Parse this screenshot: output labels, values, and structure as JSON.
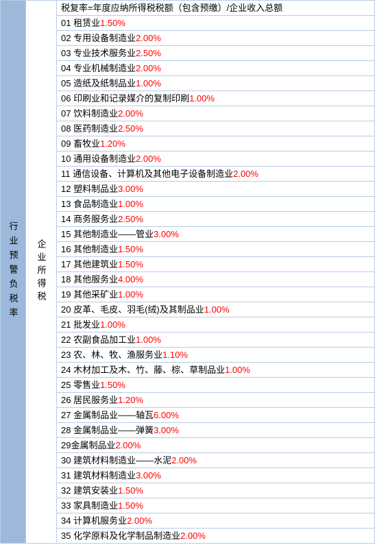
{
  "leftHeader": "行业预警负税率",
  "midHeader": "企业所得税",
  "formulaRow": "税复率=年度应纳所得税税额（包含预缴）/企业收入总额",
  "rows": [
    {
      "num": "01",
      "name": "租赁业",
      "rate": "1.50%",
      "sep": " "
    },
    {
      "num": "02",
      "name": "专用设备制造业",
      "rate": "2.00%",
      "sep": " "
    },
    {
      "num": "03",
      "name": "专业技术服务业",
      "rate": "2.50%",
      "sep": " "
    },
    {
      "num": "04",
      "name": "专业机械制造业",
      "rate": "2.00%",
      "sep": " "
    },
    {
      "num": "05",
      "name": "造纸及纸制品业",
      "rate": "1.00%",
      "sep": " "
    },
    {
      "num": "06",
      "name": "印刷业和记录媒介的复制印刷",
      "rate": "1.00%",
      "sep": " "
    },
    {
      "num": "07",
      "name": "饮料制造业",
      "rate": "2.00%",
      "sep": " "
    },
    {
      "num": "08",
      "name": "医药制造业",
      "rate": "2.50%",
      "sep": " "
    },
    {
      "num": "09",
      "name": "畜牧业",
      "rate": "1.20%",
      "sep": " "
    },
    {
      "num": "10",
      "name": "通用设备制造业",
      "rate": "2.00%",
      "sep": " "
    },
    {
      "num": "11",
      "name": "通信设备、计算机及其他电子设备制造业",
      "rate": "2.00%",
      "sep": ""
    },
    {
      "num": "12",
      "name": "塑料制品业",
      "rate": "3.00%",
      "sep": " "
    },
    {
      "num": "13",
      "name": "食品制造业",
      "rate": "1.00%",
      "sep": " "
    },
    {
      "num": "14",
      "name": "商务服务业",
      "rate": "2.50%",
      "sep": " "
    },
    {
      "num": "15",
      "name": "其他制造业——管业",
      "rate": "3.00%",
      "sep": " "
    },
    {
      "num": "16",
      "name": "其他制造业",
      "rate": "1.50%",
      "sep": " "
    },
    {
      "num": "17",
      "name": "其他建筑业",
      "rate": "1.50%",
      "sep": " "
    },
    {
      "num": "18",
      "name": "其他服务业",
      "rate": "4.00%",
      "sep": " "
    },
    {
      "num": "19",
      "name": "其他采矿业",
      "rate": "1.00%",
      "sep": " "
    },
    {
      "num": "20",
      "name": "皮革、毛皮、羽毛(绒)及其制品业",
      "rate": "1.00%",
      "sep": ""
    },
    {
      "num": "21",
      "name": "批发业",
      "rate": "1.00%",
      "sep": " "
    },
    {
      "num": "22",
      "name": "农副食品加工业",
      "rate": "1.00%",
      "sep": " "
    },
    {
      "num": "23",
      "name": "农、林、牧、渔服务业",
      "rate": "1.10%",
      "sep": " "
    },
    {
      "num": "24",
      "name": "木材加工及木、竹、藤、棕、草制品业",
      "rate": "1.00%",
      "sep": " "
    },
    {
      "num": "25",
      "name": "零售业",
      "rate": "1.50%",
      "sep": " "
    },
    {
      "num": "26",
      "name": "居民服务业",
      "rate": "1.20%",
      "sep": " "
    },
    {
      "num": "27",
      "name": "金属制品业——轴瓦",
      "rate": "6.00%",
      "sep": " "
    },
    {
      "num": "28",
      "name": "金属制品业——弹簧",
      "rate": "3.00%",
      "sep": " "
    },
    {
      "num": "29",
      "name": "金属制品业",
      "rate": "2.00%",
      "sep": ""
    },
    {
      "num": "30",
      "name": "建筑材料制造业——水泥",
      "rate": "2.00%",
      "sep": " "
    },
    {
      "num": "31",
      "name": "建筑材料制造业",
      "rate": "3.00%",
      "sep": " "
    },
    {
      "num": "32",
      "name": "建筑安装业",
      "rate": "1.50%",
      "sep": " "
    },
    {
      "num": "33",
      "name": "家具制造业",
      "rate": "1.50%",
      "sep": " "
    },
    {
      "num": "34",
      "name": "计算机服务业",
      "rate": "2.00%",
      "sep": " "
    },
    {
      "num": "35",
      "name": "化学原料及化学制品制造业",
      "rate": "2.00%",
      "sep": " "
    }
  ],
  "colors": {
    "leftBg": "#9cb9db",
    "border": "#b8cce4",
    "rateColor": "#ff0000",
    "textColor": "#000000"
  }
}
